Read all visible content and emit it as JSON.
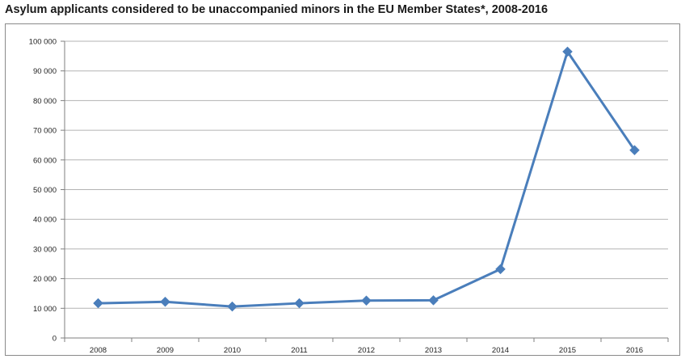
{
  "chart_data": {
    "type": "line",
    "title": "Asylum applicants considered to be unaccompanied minors in the EU Member States*, 2008-2016",
    "xlabel": "",
    "ylabel": "",
    "categories": [
      "2008",
      "2009",
      "2010",
      "2011",
      "2012",
      "2013",
      "2014",
      "2015",
      "2016"
    ],
    "series": [
      {
        "values": [
          11700,
          12200,
          10600,
          11700,
          12600,
          12700,
          23200,
          96500,
          63300
        ]
      }
    ],
    "ylim": [
      0,
      100000
    ],
    "yticks": [
      0,
      10000,
      20000,
      30000,
      40000,
      50000,
      60000,
      70000,
      80000,
      90000,
      100000
    ],
    "ytick_labels": [
      "0",
      "10 000",
      "20 000",
      "30 000",
      "40 000",
      "50 000",
      "60 000",
      "70 000",
      "80 000",
      "90 000",
      "100 000"
    ],
    "grid": true,
    "line_color": "#4a7ebb",
    "grid_color": "#b3b3b3"
  }
}
